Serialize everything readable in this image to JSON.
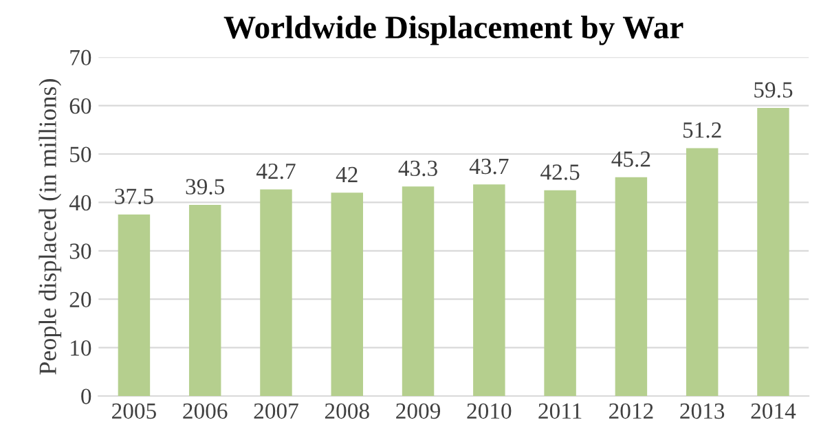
{
  "chart_data": {
    "type": "bar",
    "title": "Worldwide Displacement by War",
    "ylabel": "People displaced (in millions)",
    "categories": [
      "2005",
      "2006",
      "2007",
      "2008",
      "2009",
      "2010",
      "2011",
      "2012",
      "2013",
      "2014"
    ],
    "values": [
      37.5,
      39.5,
      42.7,
      42,
      43.3,
      43.7,
      42.5,
      45.2,
      51.2,
      59.5
    ],
    "color": "#b5cf8e",
    "ylim": [
      0,
      70
    ],
    "yticks": [
      0,
      10,
      20,
      30,
      40,
      50,
      60,
      70
    ],
    "grid": "y",
    "data_labels": true,
    "legend": false
  }
}
